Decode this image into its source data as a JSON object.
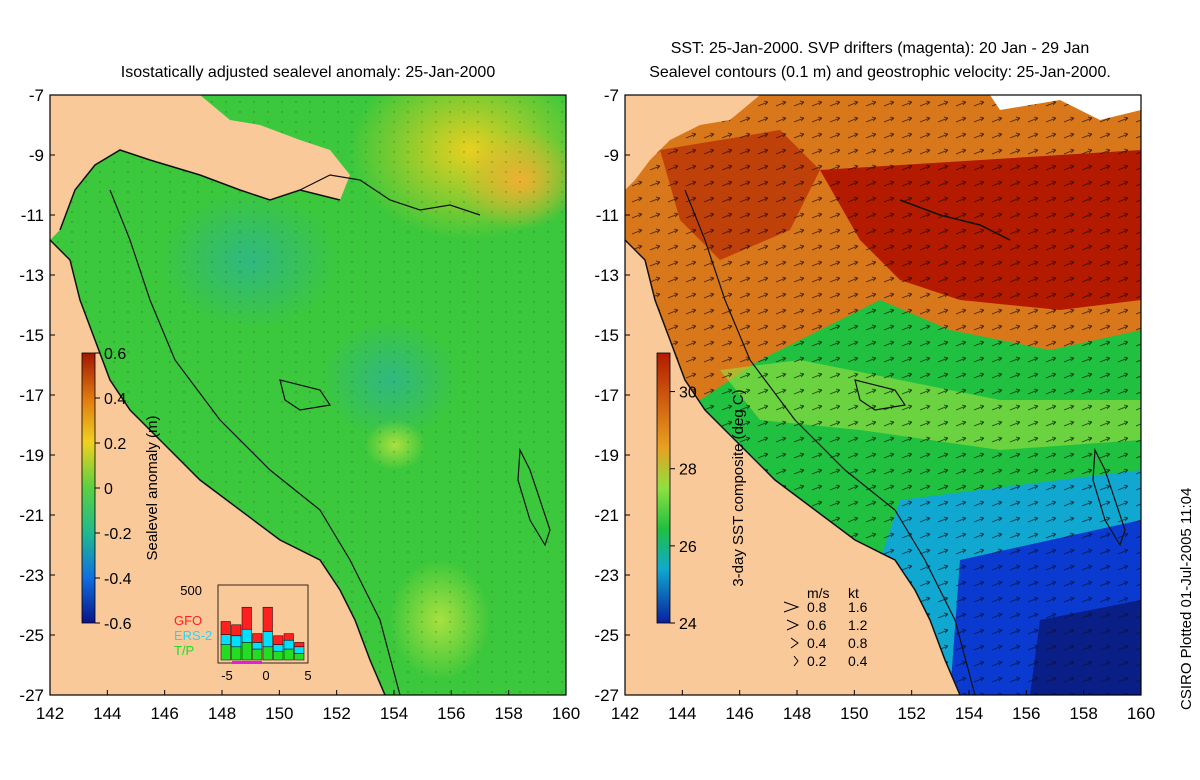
{
  "left_panel": {
    "title": "Isostatically adjusted sealevel anomaly: 25-Jan-2000",
    "colorbar": {
      "label": "Sealevel anomaly (m)",
      "ticks": [
        "0.6",
        "0.4",
        "0.2",
        "0",
        "-0.2",
        "-0.4",
        "-0.6"
      ],
      "range": [
        -0.6,
        0.6
      ]
    },
    "inset": {
      "top_label": "500",
      "x_ticks": [
        "-5",
        "0",
        "5"
      ],
      "legend": [
        {
          "name": "GFO",
          "color": "#ff2020"
        },
        {
          "name": "ERS-2",
          "color": "#00e0ff"
        },
        {
          "name": "T/P",
          "color": "#22dd22"
        }
      ]
    }
  },
  "right_panel": {
    "title_line1": "SST: 25-Jan-2000. SVP drifters (magenta): 20 Jan - 29 Jan",
    "title_line2": "Sealevel contours (0.1 m) and geostrophic velocity: 25-Jan-2000.",
    "colorbar": {
      "label": "3-day SST composite (deg C)",
      "ticks": [
        "30",
        "28",
        "26",
        "24"
      ],
      "range": [
        24,
        31
      ]
    },
    "velocity_key": {
      "headers": [
        "m/s",
        "kt"
      ],
      "rows": [
        {
          "ms": "0.8",
          "kt": "1.6"
        },
        {
          "ms": "0.6",
          "kt": "1.2"
        },
        {
          "ms": "0.4",
          "kt": "0.8"
        },
        {
          "ms": "0.2",
          "kt": "0.4"
        }
      ]
    }
  },
  "axes": {
    "lat_ticks": [
      "-7",
      "-9",
      "-11",
      "-13",
      "-15",
      "-17",
      "-19",
      "-21",
      "-23",
      "-25",
      "-27"
    ],
    "lon_ticks": [
      "142",
      "144",
      "146",
      "148",
      "150",
      "152",
      "154",
      "156",
      "158",
      "160"
    ],
    "lon_range": [
      142,
      160
    ],
    "lat_range": [
      -27,
      -7
    ]
  },
  "credit": "CSIRO Plotted 01-Jul-2005 11:04",
  "colors": {
    "land": "#f9c99a",
    "ocean_green": "#3cc83c",
    "sst_warm": "#b41a00",
    "sst_cool": "#0a3ad0"
  }
}
